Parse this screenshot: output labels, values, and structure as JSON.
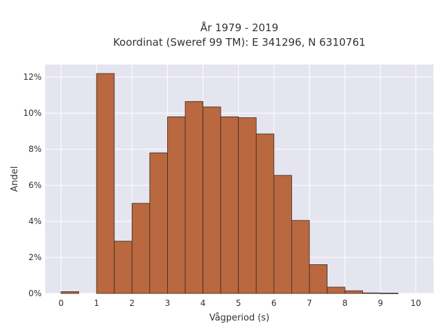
{
  "chart_data": {
    "type": "bar",
    "title_lines": [
      "År 1979 - 2019",
      "Koordinat (Sweref 99 TM): E 341296, N 6310761"
    ],
    "xlabel": "Vågperiod (s)",
    "ylabel": "Andel",
    "bin_width": 0.5,
    "bins": [
      {
        "start": 0.0,
        "value": 0.1
      },
      {
        "start": 0.5,
        "value": 0.0
      },
      {
        "start": 1.0,
        "value": 12.2
      },
      {
        "start": 1.5,
        "value": 2.9
      },
      {
        "start": 2.0,
        "value": 5.0
      },
      {
        "start": 2.5,
        "value": 7.8
      },
      {
        "start": 3.0,
        "value": 9.8
      },
      {
        "start": 3.5,
        "value": 10.65
      },
      {
        "start": 4.0,
        "value": 10.35
      },
      {
        "start": 4.5,
        "value": 9.8
      },
      {
        "start": 5.0,
        "value": 9.75
      },
      {
        "start": 5.5,
        "value": 8.85
      },
      {
        "start": 6.0,
        "value": 6.55
      },
      {
        "start": 6.5,
        "value": 4.05
      },
      {
        "start": 7.0,
        "value": 1.6
      },
      {
        "start": 7.5,
        "value": 0.35
      },
      {
        "start": 8.0,
        "value": 0.15
      },
      {
        "start": 8.5,
        "value": 0.03
      },
      {
        "start": 9.0,
        "value": 0.02
      },
      {
        "start": 9.5,
        "value": 0.0
      }
    ],
    "xlim": [
      -0.45,
      10.5
    ],
    "ylim": [
      0,
      12.7
    ],
    "xticks": [
      0,
      1,
      2,
      3,
      4,
      5,
      6,
      7,
      8,
      9,
      10
    ],
    "xtick_labels": [
      "0",
      "1",
      "2",
      "3",
      "4",
      "5",
      "6",
      "7",
      "8",
      "9",
      "10"
    ],
    "yticks": [
      0,
      2,
      4,
      6,
      8,
      10,
      12
    ],
    "ytick_labels": [
      "0%",
      "2%",
      "4%",
      "6%",
      "8%",
      "10%",
      "12%"
    ],
    "grid": true,
    "colors": {
      "bar_fill": "#b9683f",
      "bar_edge": "#3a2a20",
      "plot_bg": "#e5e5ef",
      "grid": "#ffffff"
    }
  }
}
